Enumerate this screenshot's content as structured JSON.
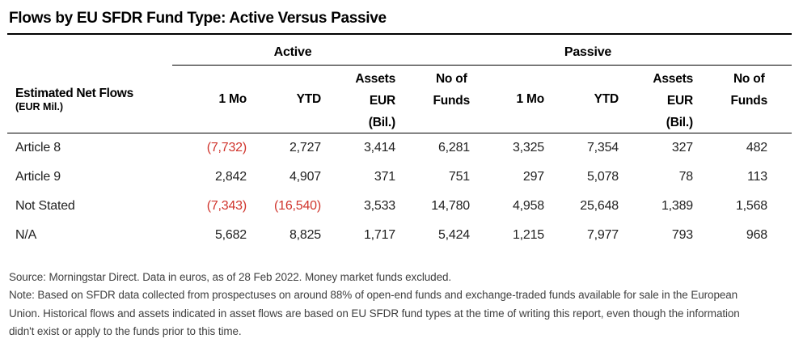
{
  "title": "Flows by EU SFDR Fund Type: Active Versus Passive",
  "table": {
    "measure_label": {
      "line1": "Estimated Net Flows",
      "line2": "(EUR Mil.)"
    },
    "group_headers": {
      "active": "Active",
      "passive": "Passive"
    },
    "col_headers": [
      {
        "l1": "1 Mo"
      },
      {
        "l1": "YTD"
      },
      {
        "l1": "Assets",
        "l2": "EUR",
        "l3": "(Bil.)"
      },
      {
        "l1": "No of",
        "l2": "Funds"
      },
      {
        "l1": "1 Mo"
      },
      {
        "l1": "YTD"
      },
      {
        "l1": "Assets",
        "l2": "EUR",
        "l3": "(Bil.)"
      },
      {
        "l1": "No of",
        "l2": "Funds"
      }
    ],
    "rows": [
      {
        "label": "Article 8",
        "values": [
          "(7,732)",
          "2,727",
          "3,414",
          "6,281",
          "3,325",
          "7,354",
          "327",
          "482"
        ]
      },
      {
        "label": "Article 9",
        "values": [
          "2,842",
          "4,907",
          "371",
          "751",
          "297",
          "5,078",
          "78",
          "113"
        ]
      },
      {
        "label": "Not Stated",
        "values": [
          "(7,343)",
          "(16,540)",
          "3,533",
          "14,780",
          "4,958",
          "25,648",
          "1,389",
          "1,568"
        ]
      },
      {
        "label": "N/A",
        "values": [
          "5,682",
          "8,825",
          "1,717",
          "5,424",
          "1,215",
          "7,977",
          "793",
          "968"
        ]
      }
    ]
  },
  "footer": {
    "lines": [
      "Source: Morningstar Direct. Data in euros, as of 28 Feb 2022. Money market funds excluded.",
      "Note: Based on SFDR data collected from prospectuses on around 88% of open-end funds and exchange-traded funds available for sale in the European",
      "Union. Historical flows and assets indicated in asset flows are based on EU SFDR fund types at the time of writing this report, even though the information",
      "didn't exist or apply to the funds prior to this time."
    ]
  },
  "colors": {
    "negative_value": "#d0342c",
    "rule": "#000000",
    "footer_text": "#404040"
  }
}
